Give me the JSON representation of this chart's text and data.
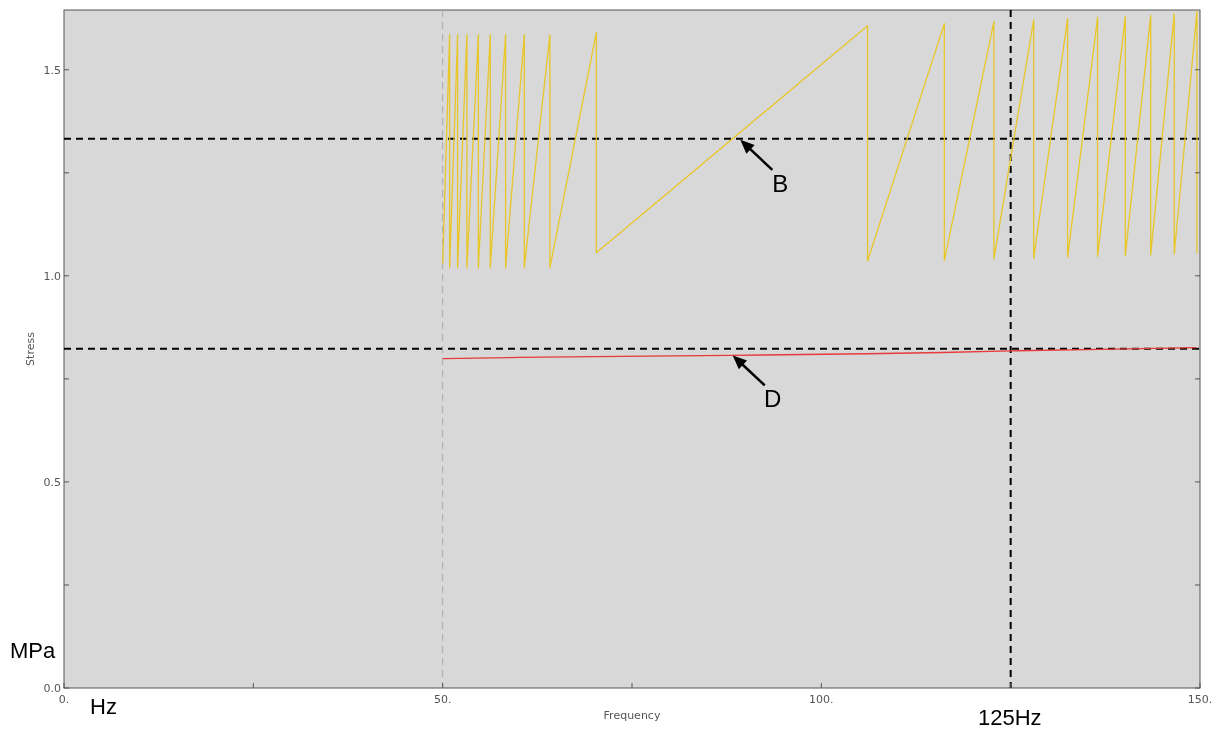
{
  "chart_data": {
    "type": "line",
    "xlabel": "Frequency",
    "ylabel": "Stress",
    "xlim": [
      0,
      150
    ],
    "ylim": [
      0,
      1.645
    ],
    "xticks": [
      {
        "value": 0,
        "label": "0."
      },
      {
        "value": 25,
        "label": null
      },
      {
        "value": 50,
        "label": "50."
      },
      {
        "value": 75,
        "label": null
      },
      {
        "value": 100,
        "label": "100."
      },
      {
        "value": 125,
        "label": null
      },
      {
        "value": 150,
        "label": "150."
      }
    ],
    "yticks": [
      {
        "value": 0,
        "label": "0.0"
      },
      {
        "value": 0.25,
        "label": null
      },
      {
        "value": 0.5,
        "label": "0.5"
      },
      {
        "value": 0.75,
        "label": null
      },
      {
        "value": 1,
        "label": "1.0"
      },
      {
        "value": 1.25,
        "label": null
      },
      {
        "value": 1.5,
        "label": "1.5"
      }
    ],
    "grid": false,
    "marker": "none",
    "line_style": "solid",
    "series": [
      {
        "color": "#e8c62a",
        "x": [
          50,
          50.92,
          50.92,
          51.97,
          51.97,
          53.2,
          53.2,
          54.71,
          54.71,
          56.29,
          56.29,
          58.31,
          58.31,
          60.78,
          60.78,
          64.16,
          64.16,
          70.29,
          70.29,
          106.11,
          106.11,
          116.24,
          116.24,
          122.79,
          122.79,
          128.04,
          128.04,
          132.52,
          132.52,
          136.48,
          136.48,
          140.14,
          140.14,
          143.49,
          143.49,
          146.6,
          146.6,
          149.6,
          149.6
        ],
        "values": [
          1.03,
          1.585,
          1.02,
          1.585,
          1.02,
          1.585,
          1.02,
          1.585,
          1.02,
          1.585,
          1.02,
          1.585,
          1.02,
          1.585,
          1.02,
          1.585,
          1.02,
          1.59,
          1.056,
          1.607,
          1.036,
          1.612,
          1.037,
          1.617,
          1.041,
          1.621,
          1.043,
          1.624,
          1.045,
          1.627,
          1.047,
          1.629,
          1.049,
          1.632,
          1.051,
          1.635,
          1.053,
          1.642,
          1.055
        ]
      },
      {
        "color": "#e83a3a",
        "x": [
          50,
          60,
          70,
          88,
          106,
          116,
          125,
          135,
          149.5
        ],
        "values": [
          0.799,
          0.802,
          0.804,
          0.807,
          0.811,
          0.814,
          0.818,
          0.821,
          0.826
        ]
      }
    ],
    "ref_lines": [
      {
        "axis": "y",
        "value": 1.3325,
        "color": "#000000",
        "line_style": "dashed"
      },
      {
        "axis": "y",
        "value": 0.823,
        "color": "#000000",
        "line_style": "dashed"
      },
      {
        "axis": "x",
        "value": 125,
        "color": "#000000",
        "line_style": "dashed"
      },
      {
        "axis": "x",
        "value": 50,
        "color": "#aaaaaa",
        "line_style": "dashed"
      }
    ],
    "annotations": [
      {
        "text": "B",
        "x": 89.3,
        "y": 1.33
      },
      {
        "text": "D",
        "x": 88.3,
        "y": 0.807
      },
      "MPa",
      "Hz",
      "125Hz"
    ]
  }
}
